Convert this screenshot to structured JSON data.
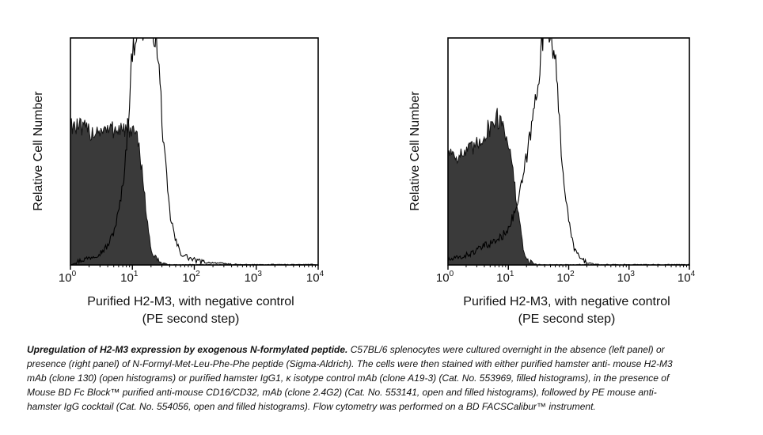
{
  "figure": {
    "caption_title": "Upregulation of H2-M3 expression by exogenous N-formylated peptide.",
    "caption_body": "C57BL/6 splenocytes were cultured overnight in the absence (left panel) or presence (right panel) of N-Formyl-Met-Leu-Phe-Phe peptide (Sigma-Aldrich). The cells were then stained with either purified hamster anti- mouse H2-M3 mAb (clone 130) (open histograms) or purified hamster IgG1, κ isotype control mAb (clone A19-3) (Cat. No. 553969, filled histograms), in the presence of Mouse BD Fc Block™ purified anti-mouse CD16/CD32, mAb (clone 2.4G2) (Cat. No. 553141, open and filled histograms), followed by PE mouse anti-hamster IgG cocktail (Cat. No. 554056, open and filled histograms). Flow cytometry was performed on a BD FACSCalibur™ instrument."
  },
  "chart_data": [
    {
      "type": "area",
      "panel": "left",
      "xlabel": "Purified H2-M3, with negative control",
      "xlabel2": "(PE second step)",
      "ylabel": "Relative Cell Number",
      "xscale": "log",
      "xlim": [
        1,
        10000
      ],
      "ylim": [
        0,
        100
      ],
      "xticks": [
        "10^0",
        "10^1",
        "10^2",
        "10^3",
        "10^4"
      ],
      "series": [
        {
          "role": "open histogram (H2-M3 mAb)",
          "style": "open",
          "x": [
            1,
            1.2,
            1.5,
            2,
            3,
            4,
            5,
            6,
            7,
            8,
            9,
            10,
            12,
            14,
            16,
            18,
            20,
            22,
            25,
            28,
            32,
            40,
            50,
            60,
            80,
            100,
            150,
            200,
            500,
            1000,
            10000
          ],
          "y": [
            0,
            1,
            2,
            3,
            5,
            8,
            14,
            22,
            33,
            50,
            70,
            90,
            100,
            100,
            100,
            100,
            100,
            100,
            92,
            75,
            50,
            22,
            10,
            5,
            3,
            2,
            1,
            1,
            0,
            0,
            0
          ]
        },
        {
          "role": "filled histogram (isotype control)",
          "style": "filled",
          "x": [
            1,
            1.2,
            1.5,
            2,
            2.5,
            3,
            4,
            5,
            6,
            7,
            8,
            9,
            10,
            12,
            14,
            16,
            18,
            20,
            25,
            30,
            40,
            60,
            100,
            1000,
            10000
          ],
          "y": [
            60,
            58,
            57,
            56,
            56,
            57,
            56,
            57,
            58,
            57,
            56,
            57,
            56,
            52,
            42,
            28,
            15,
            6,
            2,
            1,
            0,
            0,
            0,
            0,
            0
          ]
        }
      ]
    },
    {
      "type": "area",
      "panel": "right",
      "xlabel": "Purified H2-M3, with negative control",
      "xlabel2": "(PE second step)",
      "ylabel": "Relative Cell Number",
      "xscale": "log",
      "xlim": [
        1,
        10000
      ],
      "ylim": [
        0,
        100
      ],
      "xticks": [
        "10^0",
        "10^1",
        "10^2",
        "10^3",
        "10^4"
      ],
      "series": [
        {
          "role": "open histogram (H2-M3 mAb)",
          "style": "open",
          "x": [
            1,
            1.5,
            2,
            3,
            4,
            5,
            6,
            8,
            10,
            12,
            15,
            18,
            20,
            25,
            30,
            35,
            40,
            45,
            50,
            60,
            70,
            80,
            100,
            120,
            150,
            200,
            300,
            1000,
            10000
          ],
          "y": [
            2,
            3,
            4,
            6,
            8,
            9,
            10,
            12,
            16,
            20,
            28,
            38,
            45,
            60,
            75,
            90,
            100,
            100,
            100,
            85,
            60,
            40,
            18,
            8,
            3,
            1,
            0,
            0,
            0
          ]
        },
        {
          "role": "filled histogram (isotype control)",
          "style": "filled",
          "x": [
            1,
            1.5,
            2,
            3,
            4,
            5,
            6,
            8,
            10,
            12,
            14,
            16,
            18,
            20,
            25,
            30,
            40,
            60,
            100,
            1000,
            10000
          ],
          "y": [
            48,
            46,
            47,
            50,
            55,
            58,
            62,
            60,
            52,
            38,
            25,
            14,
            6,
            2,
            1,
            0,
            0,
            0,
            0,
            0,
            0
          ]
        }
      ]
    }
  ]
}
